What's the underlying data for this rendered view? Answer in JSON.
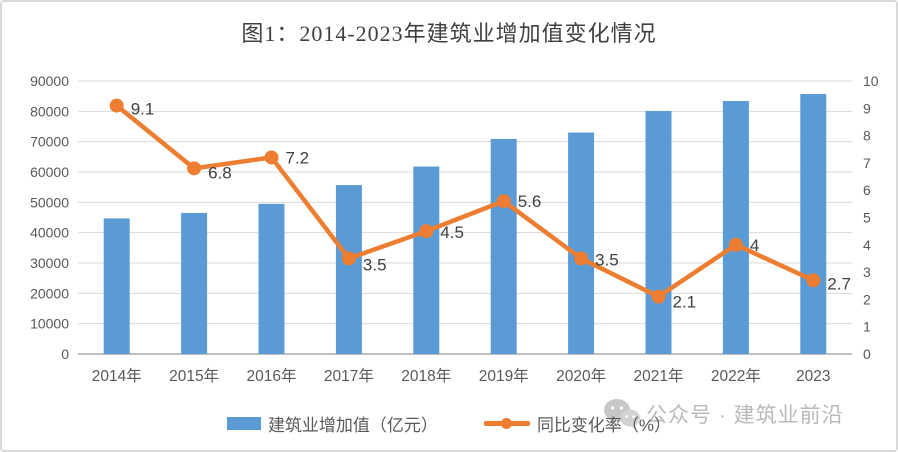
{
  "title": "图1：2014-2023年建筑业增加值变化情况",
  "chart_data": {
    "type": "bar+line combo",
    "categories": [
      "2014年",
      "2015年",
      "2016年",
      "2017年",
      "2018年",
      "2019年",
      "2020年",
      "2021年",
      "2022年",
      "2023"
    ],
    "series": [
      {
        "name": "建筑业增加值（亿元）",
        "type": "bar",
        "axis": "left",
        "color": "#5B9BD5",
        "values": [
          44700,
          46500,
          49500,
          55700,
          61800,
          70900,
          73000,
          80100,
          83400,
          85700
        ],
        "data_labels_shown": false
      },
      {
        "name": "同比变化率（%）",
        "type": "line",
        "axis": "right",
        "color": "#ED7D31",
        "values": [
          9.1,
          6.8,
          7.2,
          3.5,
          4.5,
          5.6,
          3.5,
          2.1,
          4,
          2.7
        ],
        "data_labels_shown": true
      }
    ],
    "left_axis": {
      "min": 0,
      "max": 90000,
      "step": 10000
    },
    "right_axis": {
      "min": 0,
      "max": 10,
      "step": 1
    },
    "grid": true,
    "legend_position": "bottom",
    "colors": {
      "grid": "#D9D9D9",
      "axis_line": "#BFBFBF",
      "tick_labels": "#595959",
      "data_labels": "#404040"
    }
  },
  "legend": {
    "items": [
      {
        "label": "建筑业增加值（亿元）",
        "color": "#5B9BD5",
        "swatch": "bar"
      },
      {
        "label": "同比变化率（%）",
        "color": "#ED7D31",
        "swatch": "line"
      }
    ]
  },
  "watermark": {
    "icon": "wechat-icon",
    "text": "公众号 · 建筑业前沿"
  }
}
